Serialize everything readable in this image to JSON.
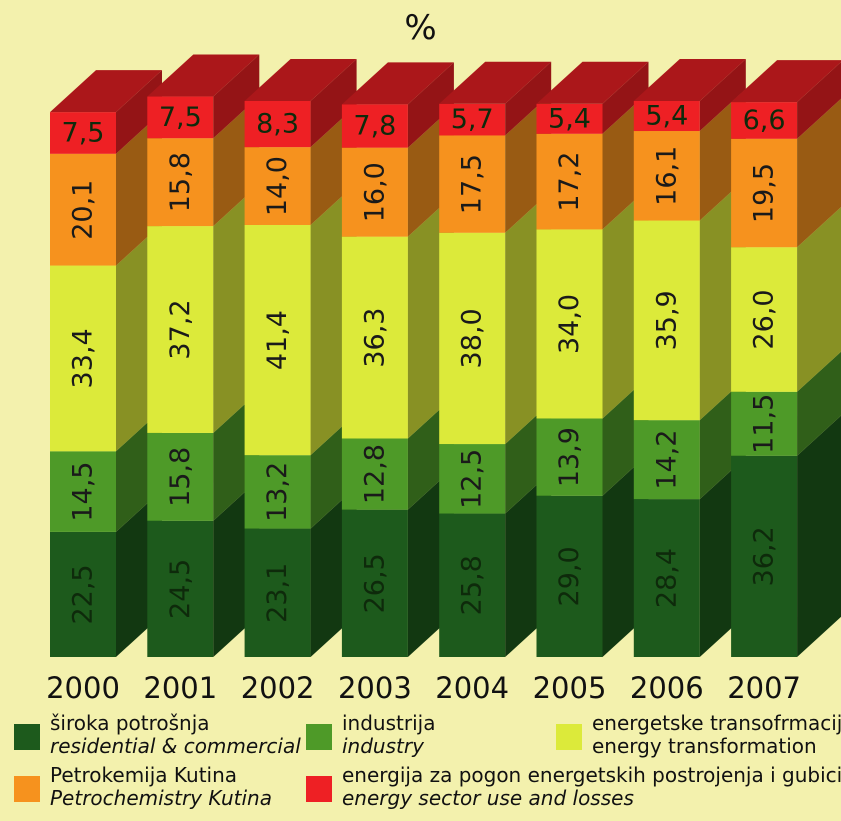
{
  "title": "",
  "unit": "%",
  "colors": {
    "residential": "#1d5a1c",
    "industry": "#4e9a28",
    "transformation": "#dcea3a",
    "petrochemistry": "#f6921e",
    "losses": "#ee2024"
  },
  "chart_data": {
    "type": "bar",
    "stacked": true,
    "categories": [
      "2000",
      "2001",
      "2002",
      "2003",
      "2004",
      "2005",
      "2006",
      "2007"
    ],
    "series": [
      {
        "name": "široka potrošnja / residential & commercial",
        "key": "residential",
        "labels": [
          "22,5",
          "24,5",
          "23,1",
          "26,5",
          "25,8",
          "29,0",
          "28,4",
          "36,2"
        ],
        "values": [
          22.5,
          24.5,
          23.1,
          26.5,
          25.8,
          29.0,
          28.4,
          36.2
        ]
      },
      {
        "name": "industrija / industry",
        "key": "industry",
        "labels": [
          "14,5",
          "15,8",
          "13,2",
          "12,8",
          "12,5",
          "13,9",
          "14,2",
          "11,5"
        ],
        "values": [
          14.5,
          15.8,
          13.2,
          12.8,
          12.5,
          13.9,
          14.2,
          11.5
        ]
      },
      {
        "name": "energetske transofrmacije / energy transformation",
        "key": "transformation",
        "labels": [
          "33,4",
          "37,2",
          "41,4",
          "36,3",
          "38,0",
          "34,0",
          "35,9",
          "26,0"
        ],
        "values": [
          33.4,
          37.2,
          41.4,
          36.3,
          38.0,
          34.0,
          35.9,
          26.0
        ]
      },
      {
        "name": "Petrokemija Kutina / Petrochemistry Kutina",
        "key": "petrochemistry",
        "labels": [
          "20,1",
          "15,8",
          "14,0",
          "16,0",
          "17,5",
          "17,2",
          "16,1",
          "19,5"
        ],
        "values": [
          20.1,
          15.8,
          14.0,
          16.0,
          17.5,
          17.2,
          16.1,
          19.5
        ]
      },
      {
        "name": "energija za pogon energetskih postrojenja i gubici / energy sector use and losses",
        "key": "losses",
        "labels": [
          "7,5",
          "7,5",
          "8,3",
          "7,8",
          "5,7",
          "5,4",
          "5,4",
          "6,6"
        ],
        "values": [
          7.5,
          7.5,
          8.3,
          7.8,
          5.7,
          5.4,
          5.4,
          6.6
        ]
      }
    ],
    "ylim": [
      0,
      100
    ],
    "legend_position": "bottom",
    "grid": false
  },
  "legend": [
    {
      "key": "residential",
      "hr": "široka potrošnja",
      "en": "residential & commercial",
      "en_italic": true
    },
    {
      "key": "industry",
      "hr": "industrija",
      "en": "industry",
      "en_italic": true
    },
    {
      "key": "transformation",
      "hr": "energetske transofrmacije",
      "en": "energy transformation",
      "en_italic": false
    },
    {
      "key": "petrochemistry",
      "hr": "Petrokemija Kutina",
      "en": "Petrochemistry Kutina",
      "en_italic": true
    },
    {
      "key": "losses",
      "hr": "energija za pogon energetskih postrojenja i gubici",
      "en": "energy sector use and losses",
      "en_italic": true
    }
  ]
}
